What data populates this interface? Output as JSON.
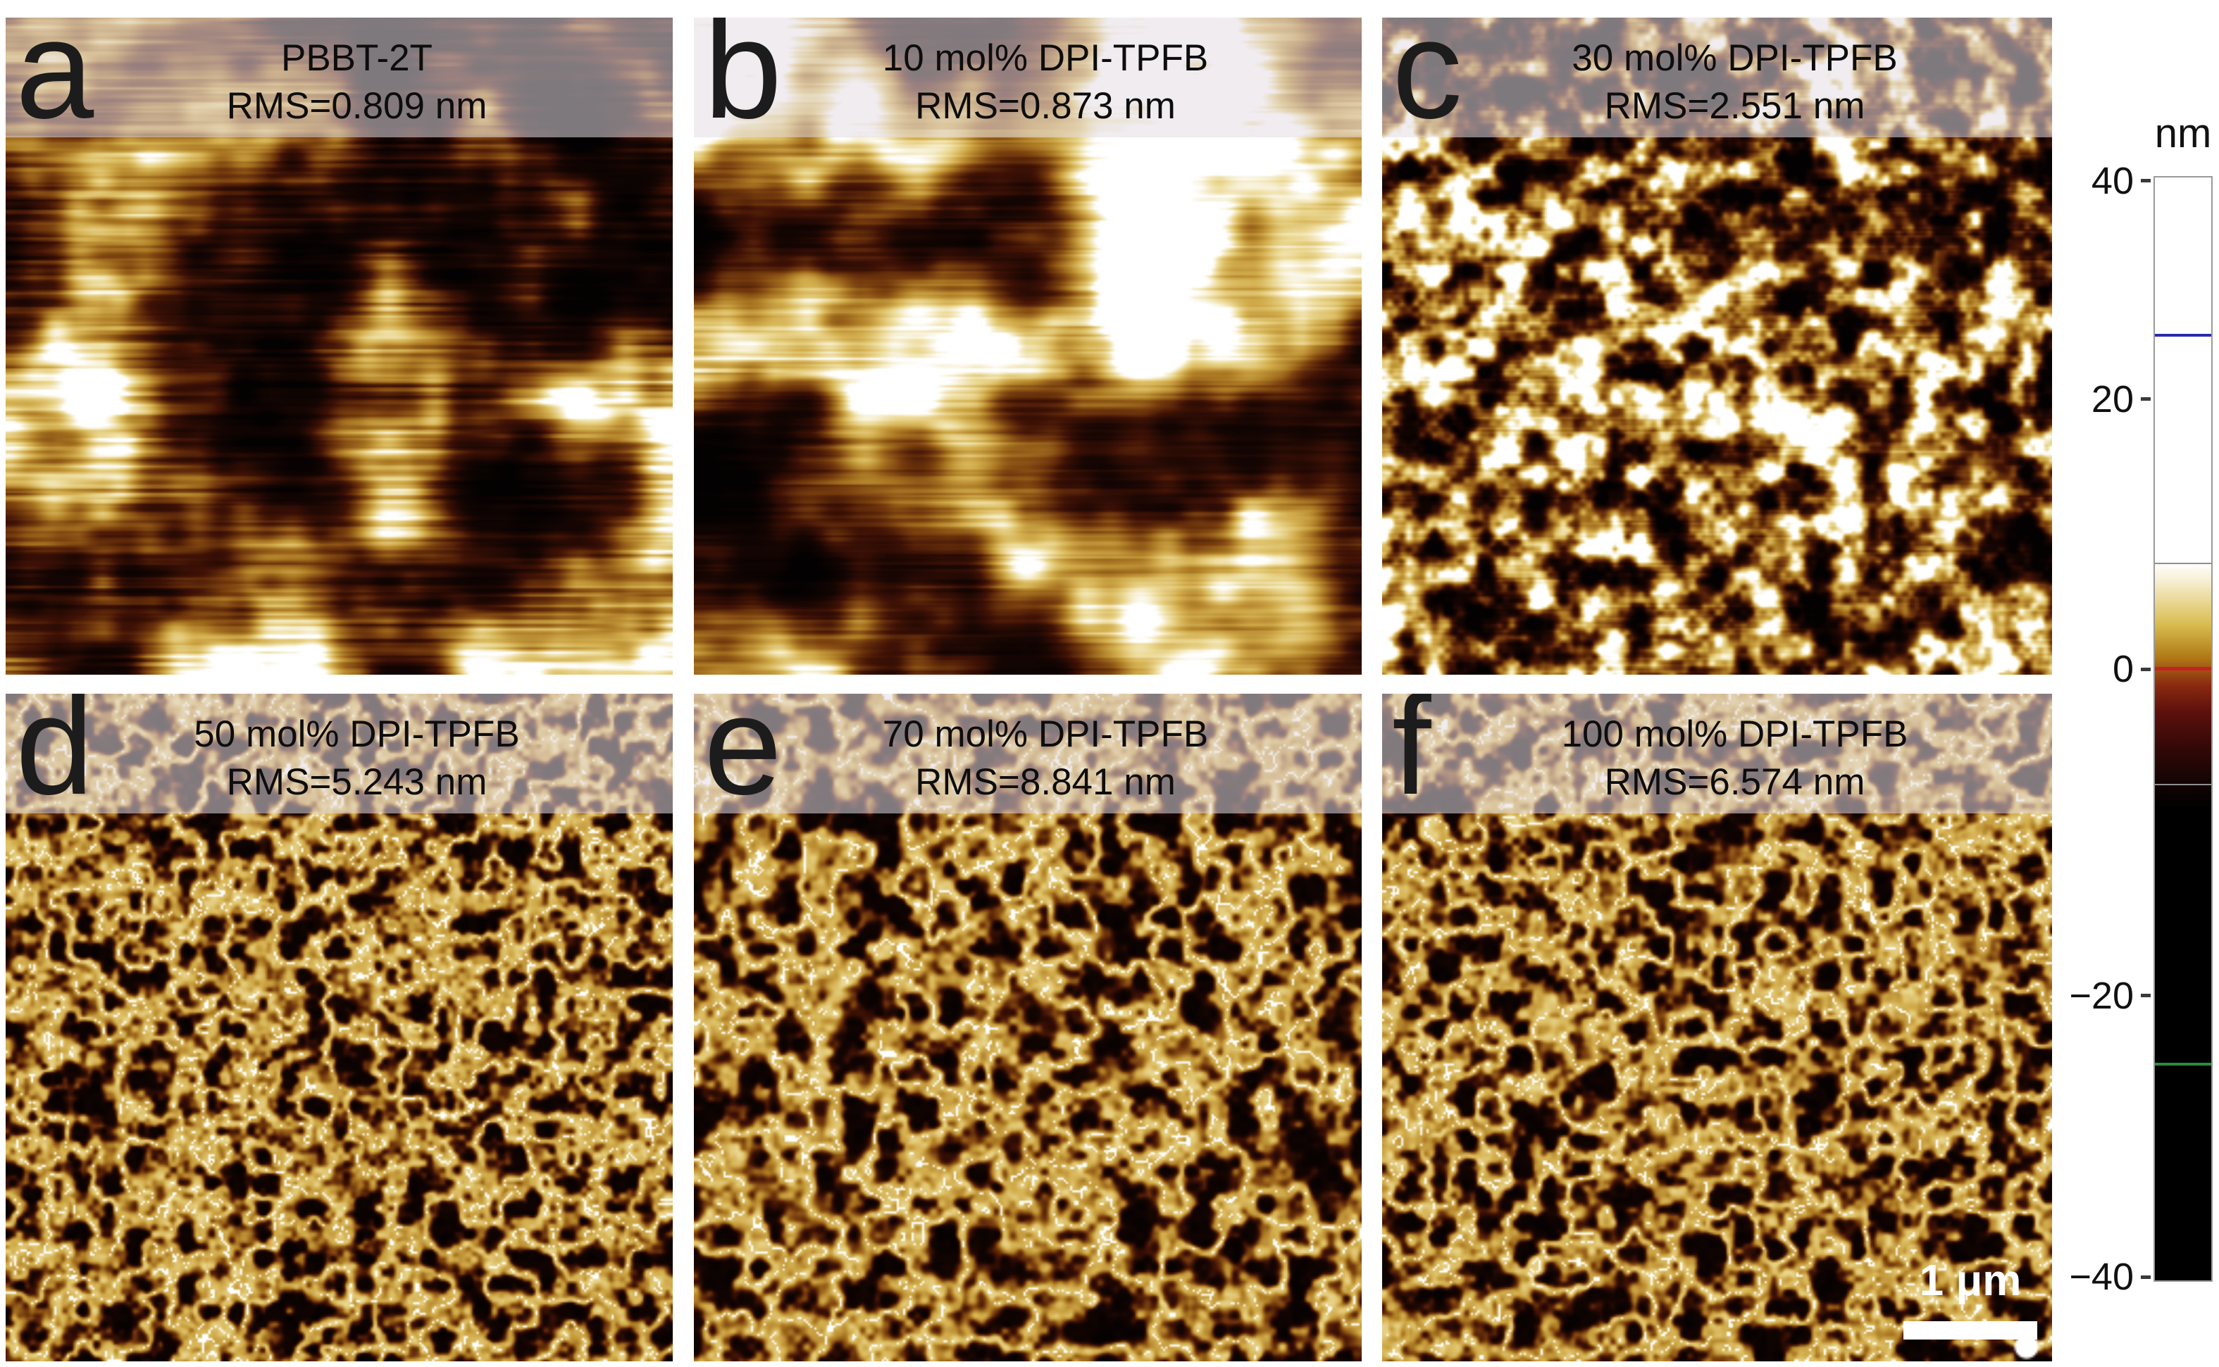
{
  "figure": {
    "panels": [
      {
        "letter": "a",
        "title": "PBBT-2T",
        "rms": "RMS=0.809 nm"
      },
      {
        "letter": "b",
        "title": "10 mol% DPI-TPFB",
        "rms": "RMS=0.873 nm"
      },
      {
        "letter": "c",
        "title": "30 mol% DPI-TPFB",
        "rms": "RMS=2.551 nm"
      },
      {
        "letter": "d",
        "title": "50 mol% DPI-TPFB",
        "rms": "RMS=5.243 nm"
      },
      {
        "letter": "e",
        "title": "70 mol% DPI-TPFB",
        "rms": "RMS=8.841 nm"
      },
      {
        "letter": "f",
        "title": "100 mol% DPI-TPFB",
        "rms": "RMS=6.574 nm"
      }
    ],
    "colorbar": {
      "unit": "nm",
      "ticks": [
        {
          "label": "40"
        },
        {
          "label": "20"
        },
        {
          "label": "0"
        },
        {
          "label": "−20"
        },
        {
          "label": "−40"
        }
      ],
      "marker_colors": {
        "blue": "#2a2ab0",
        "red": "#c92020",
        "green": "#2e8b3a"
      }
    },
    "scalebar": {
      "label": "1 μm"
    }
  }
}
